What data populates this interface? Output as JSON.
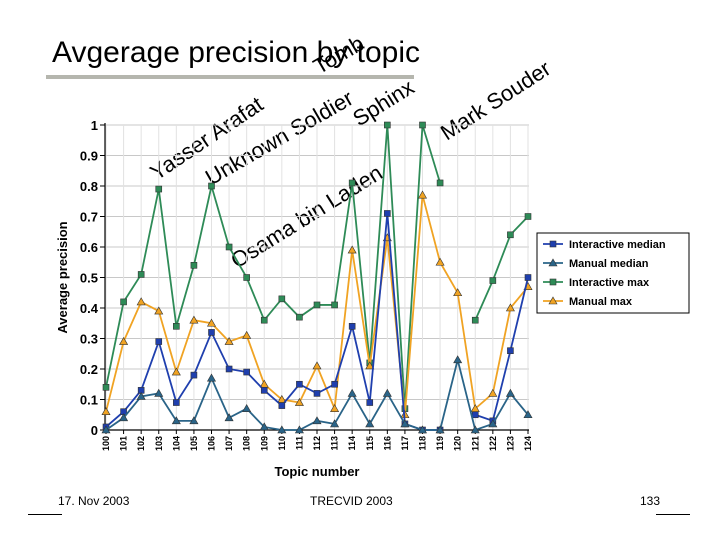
{
  "slide": {
    "title": "Avgerage precision by topic",
    "footer_left": "17. Nov 2003",
    "footer_center": "TRECVID 2003",
    "footer_right": "133"
  },
  "annotations": [
    "Yasser Arafat",
    "Unknown Soldier",
    "Tomb",
    "Osama bin Laden",
    "Sphinx",
    "Mark Souder"
  ],
  "chart_data": {
    "type": "line",
    "title": "",
    "xlabel": "Topic number",
    "ylabel": "Average precision",
    "ylim": [
      0,
      1
    ],
    "yticks": [
      "0",
      "0.1",
      "0.2",
      "0.3",
      "0.4",
      "0.5",
      "0.6",
      "0.7",
      "0.8",
      "0.9",
      "1"
    ],
    "categories": [
      "100",
      "101",
      "102",
      "103",
      "104",
      "105",
      "106",
      "107",
      "108",
      "109",
      "110",
      "111",
      "112",
      "113",
      "114",
      "115",
      "116",
      "117",
      "118",
      "119",
      "120",
      "121",
      "122",
      "123",
      "124"
    ],
    "legend_position": "right",
    "series": [
      {
        "name": "Interactive median",
        "color": "#1f3fae",
        "marker": "square",
        "values": [
          0.01,
          0.06,
          0.13,
          0.29,
          0.09,
          0.18,
          0.32,
          0.2,
          0.19,
          0.13,
          0.08,
          0.15,
          0.12,
          0.15,
          0.34,
          0.09,
          0.71,
          0.02,
          0.0,
          0.0,
          null,
          0.05,
          0.03,
          0.26,
          0.5
        ]
      },
      {
        "name": "Manual median",
        "color": "#2a6488",
        "marker": "triangle",
        "values": [
          0.0,
          0.04,
          0.11,
          0.12,
          0.03,
          0.03,
          0.17,
          0.04,
          0.07,
          0.01,
          0.0,
          0.0,
          0.03,
          0.02,
          0.12,
          0.02,
          0.12,
          0.02,
          0.0,
          0.0,
          0.23,
          0.0,
          0.02,
          0.12,
          0.05
        ]
      },
      {
        "name": "Interactive max",
        "color": "#2e8b57",
        "marker": "square",
        "values": [
          0.14,
          0.42,
          0.51,
          0.79,
          0.34,
          0.54,
          0.8,
          0.6,
          0.5,
          0.36,
          0.43,
          0.37,
          0.41,
          0.41,
          0.81,
          0.22,
          1.0,
          0.07,
          1.0,
          0.81,
          null,
          0.36,
          0.49,
          0.64,
          0.7
        ]
      },
      {
        "name": "Manual max",
        "color": "#f0a323",
        "marker": "triangle",
        "values": [
          0.06,
          0.29,
          0.42,
          0.39,
          0.19,
          0.36,
          0.35,
          0.29,
          0.31,
          0.15,
          0.1,
          0.09,
          0.21,
          0.07,
          0.59,
          0.21,
          0.63,
          0.05,
          0.77,
          0.55,
          0.45,
          0.07,
          0.12,
          0.4,
          0.47
        ]
      }
    ]
  }
}
